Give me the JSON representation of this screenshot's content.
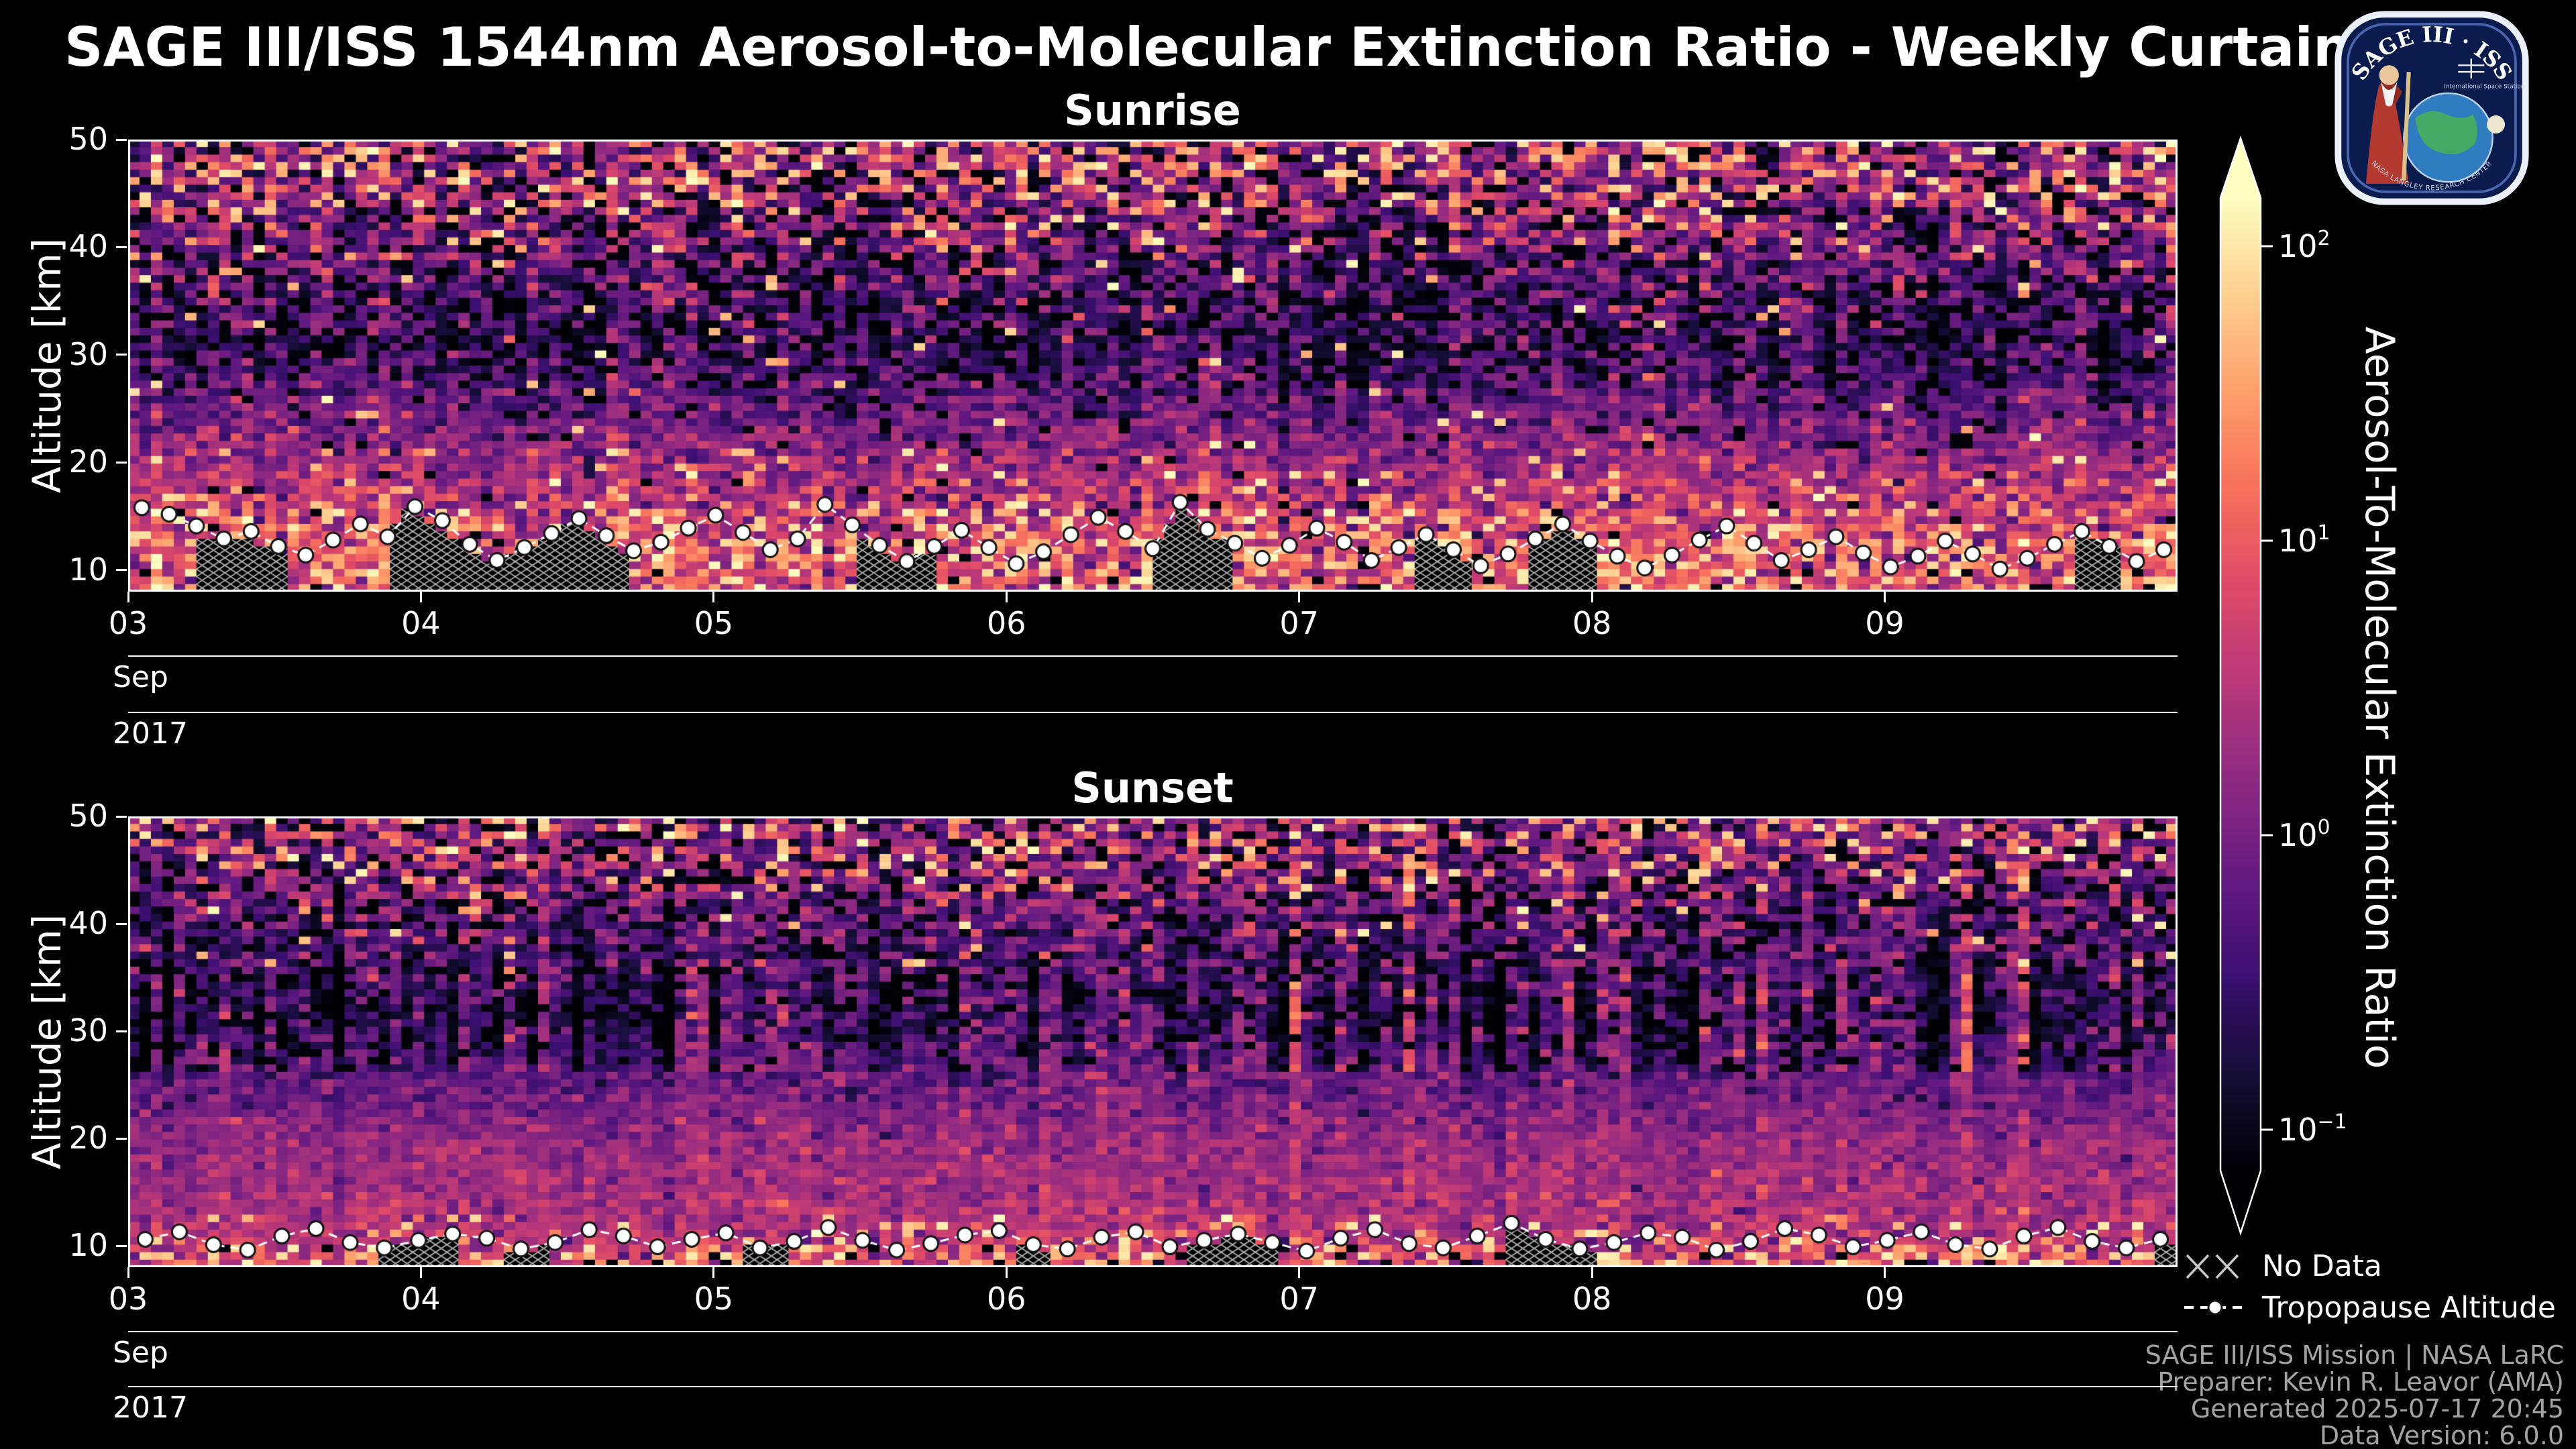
{
  "page": {
    "title": "SAGE III/ISS 1544nm Aerosol-to-Molecular Extinction Ratio - Weekly Curtains"
  },
  "logo": {
    "title": "SAGE III · ISS",
    "subtitle": "International Space Station",
    "ring_text": "NASA LANGLEY RESEARCH CENTER"
  },
  "legend": {
    "no_data": "No Data",
    "tropopause": "Tropopause Altitude"
  },
  "footer": {
    "lines": [
      "SAGE III/ISS Mission | NASA LaRC",
      "Preparer: Kevin R. Leavor (AMA)",
      "Generated 2025-07-17 20:45",
      "Data Version: 6.0.0"
    ]
  },
  "colorbar": {
    "label": "Aerosol-To-Molecular Extinction Ratio",
    "scale": "log",
    "range": [
      0.1,
      100
    ],
    "ticks": [
      {
        "mantissa": "10",
        "exponent": "2"
      },
      {
        "mantissa": "10",
        "exponent": "1"
      },
      {
        "mantissa": "10",
        "exponent": "0"
      },
      {
        "mantissa": "10",
        "exponent": "−1"
      }
    ],
    "gradient_stops": [
      "#000004",
      "#140e36",
      "#3b0f70",
      "#641a80",
      "#8c2981",
      "#b73779",
      "#de4968",
      "#f7705c",
      "#fe9f6d",
      "#fecf92",
      "#fcfdbf"
    ]
  },
  "chart_data": [
    {
      "type": "heatmap",
      "title": "Sunrise",
      "x": {
        "month": "Sep",
        "year": "2017",
        "tick_labels": [
          "03",
          "04",
          "05",
          "06",
          "07",
          "08",
          "09"
        ],
        "span_days": 7
      },
      "y": {
        "label": "Altitude [km]",
        "range": [
          8,
          50
        ],
        "ticks": [
          10,
          20,
          30,
          40,
          50
        ]
      },
      "color_scale": {
        "type": "log",
        "range": [
          0.1,
          100
        ],
        "colormap": "magma"
      },
      "grid": {
        "cols": 180,
        "rows": 60
      },
      "seed": 20170903,
      "bands": [
        {
          "alt": [
            8,
            16
          ],
          "log_mean": 0.85,
          "log_sd": 0.55,
          "bright_p": 0.16,
          "dark_p": 0.03,
          "col_mix": 0.5
        },
        {
          "alt": [
            16,
            21
          ],
          "log_mean": 0.4,
          "log_sd": 0.4,
          "bright_p": 0.06,
          "dark_p": 0.02,
          "col_mix": 0.3
        },
        {
          "alt": [
            21,
            27
          ],
          "log_mean": -0.05,
          "log_sd": 0.35,
          "bright_p": 0.01,
          "dark_p": 0.05,
          "col_mix": 0.3
        },
        {
          "alt": [
            27,
            36
          ],
          "log_mean": -0.55,
          "log_sd": 0.45,
          "bright_p": 0.01,
          "dark_p": 0.16,
          "col_mix": 0.5
        },
        {
          "alt": [
            36,
            44
          ],
          "log_mean": -0.15,
          "log_sd": 0.65,
          "bright_p": 0.04,
          "dark_p": 0.08,
          "col_mix": 0.4
        },
        {
          "alt": [
            44,
            50.5
          ],
          "log_mean": 0.25,
          "log_sd": 0.85,
          "bright_p": 0.1,
          "dark_p": 0.05,
          "col_mix": 0.5
        }
      ],
      "no_data": {
        "hatch_probability": 0.45
      },
      "tropopause_km": [
        15.8,
        15.2,
        14.1,
        12.9,
        13.6,
        12.2,
        11.4,
        12.8,
        14.3,
        13.1,
        15.9,
        14.6,
        12.4,
        10.9,
        12.1,
        13.4,
        14.8,
        13.2,
        11.8,
        12.6,
        13.9,
        15.1,
        13.5,
        11.9,
        12.9,
        16.1,
        14.2,
        12.3,
        10.8,
        12.2,
        13.7,
        12.1,
        10.6,
        11.7,
        13.3,
        14.9,
        13.6,
        12.0,
        16.3,
        13.8,
        12.5,
        11.1,
        12.3,
        13.9,
        12.6,
        10.9,
        12.1,
        13.3,
        11.9,
        10.4,
        11.5,
        12.9,
        14.3,
        12.7,
        11.3,
        10.2,
        11.4,
        12.8,
        14.1,
        12.5,
        10.9,
        11.9,
        13.1,
        11.6,
        10.3,
        11.3,
        12.7,
        11.5,
        10.1,
        11.1,
        12.4,
        13.6,
        12.2,
        10.8,
        11.9
      ]
    },
    {
      "type": "heatmap",
      "title": "Sunset",
      "x": {
        "month": "Sep",
        "year": "2017",
        "tick_labels": [
          "03",
          "04",
          "05",
          "06",
          "07",
          "08",
          "09"
        ],
        "span_days": 7
      },
      "y": {
        "label": "Altitude [km]",
        "range": [
          8,
          50
        ],
        "ticks": [
          10,
          20,
          30,
          40,
          50
        ]
      },
      "color_scale": {
        "type": "log",
        "range": [
          0.1,
          100
        ],
        "colormap": "magma"
      },
      "grid": {
        "cols": 180,
        "rows": 60
      },
      "seed": 20170904,
      "bands": [
        {
          "alt": [
            8,
            10
          ],
          "log_mean": 0.8,
          "log_sd": 0.6,
          "bright_p": 0.18,
          "dark_p": 0.05,
          "col_mix": 0.2
        },
        {
          "alt": [
            10,
            13
          ],
          "log_mean": 0.5,
          "log_sd": 0.3,
          "bright_p": 0.05,
          "dark_p": 0.0,
          "col_mix": 0.2
        },
        {
          "alt": [
            13,
            26
          ],
          "log_mean": 0.28,
          "log_sd": 0.22,
          "bright_p": 0.0,
          "dark_p": 0.0,
          "col_mix": 0.2
        },
        {
          "alt": [
            26,
            36
          ],
          "log_mean": -0.5,
          "log_sd": 0.4,
          "bright_p": 0.0,
          "dark_p": 0.1,
          "col_mix": 0.9
        },
        {
          "alt": [
            36,
            44
          ],
          "log_mean": -0.25,
          "log_sd": 0.55,
          "bright_p": 0.02,
          "dark_p": 0.07,
          "col_mix": 0.5
        },
        {
          "alt": [
            44,
            50.5
          ],
          "log_mean": 0.15,
          "log_sd": 0.8,
          "bright_p": 0.08,
          "dark_p": 0.06,
          "col_mix": 0.5
        }
      ],
      "no_data": {
        "hatch_probability": 0.15
      },
      "tropopause_km": [
        10.6,
        11.3,
        10.1,
        9.6,
        10.9,
        11.6,
        10.3,
        9.8,
        10.5,
        11.1,
        10.7,
        9.7,
        10.3,
        11.5,
        10.9,
        9.9,
        10.6,
        11.2,
        9.8,
        10.4,
        11.7,
        10.5,
        9.6,
        10.2,
        11.0,
        11.4,
        10.1,
        9.7,
        10.8,
        11.3,
        9.9,
        10.5,
        11.1,
        10.3,
        9.5,
        10.7,
        11.5,
        10.2,
        9.8,
        10.9,
        12.1,
        10.6,
        9.7,
        10.3,
        11.2,
        10.8,
        9.6,
        10.4,
        11.6,
        11.0,
        9.9,
        10.5,
        11.3,
        10.1,
        9.7,
        10.9,
        11.7,
        10.4,
        9.8,
        10.6
      ]
    }
  ]
}
